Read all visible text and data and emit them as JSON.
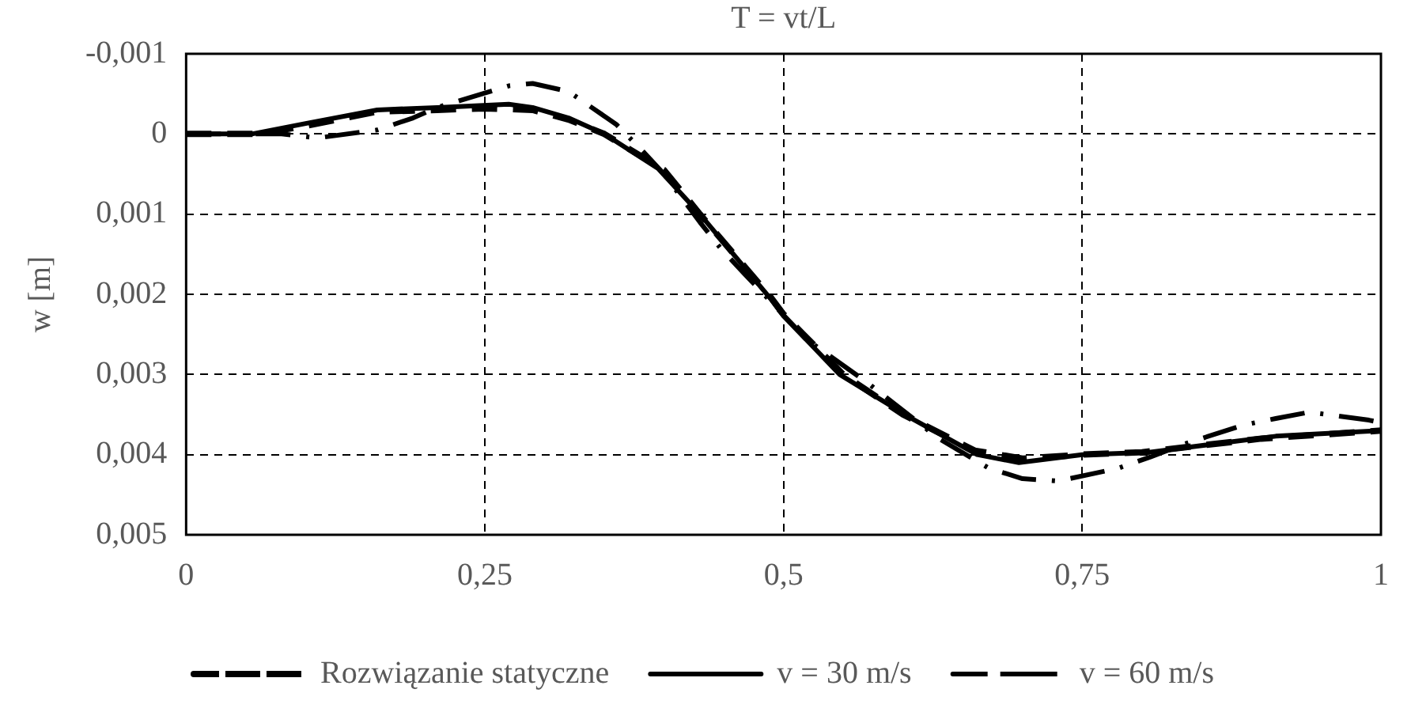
{
  "chart_data": {
    "type": "line",
    "xlabel": "T = vt/L",
    "ylabel": "w [m]",
    "xlim": [
      0,
      1
    ],
    "xticks": [
      0,
      {
        "value": 0.25,
        "label": "0,25"
      },
      {
        "value": 0.5,
        "label": "0,5"
      },
      {
        "value": 0.75,
        "label": "0,75"
      },
      1
    ],
    "ylim": [
      0.005,
      -0.001
    ],
    "yticks": [
      {
        "value": -0.001,
        "label": "-0,001"
      },
      0,
      {
        "value": 0.001,
        "label": "0,001"
      },
      {
        "value": 0.002,
        "label": "0,002"
      },
      {
        "value": 0.003,
        "label": "0,003"
      },
      {
        "value": 0.004,
        "label": "0,004"
      },
      {
        "value": 0.005,
        "label": "0,005"
      }
    ],
    "grid": true,
    "legend": "bottom",
    "marker": "none",
    "series": [
      {
        "name": "Rozwiązanie statyczne",
        "color": "#000000",
        "line_style": "dashed",
        "x": [
          0,
          0.06,
          0.1,
          0.16,
          0.21,
          0.25,
          0.29,
          0.32,
          0.35,
          0.4,
          0.43,
          0.49,
          0.5,
          0.55,
          0.6,
          0.66,
          0.7,
          0.75,
          0.8,
          0.9,
          1
        ],
        "values": [
          0,
          0,
          -0.0001,
          -0.00028,
          -0.0003,
          -0.00032,
          -0.0003,
          -0.00018,
          0,
          0.00045,
          0.001,
          0.00205,
          0.00225,
          0.003,
          0.0035,
          0.00395,
          0.00405,
          0.004,
          0.00397,
          0.0038,
          0.0037
        ]
      },
      {
        "name": "v = 30 m/s",
        "color": "#000000",
        "line_style": "solid",
        "x": [
          0,
          0.055,
          0.1,
          0.16,
          0.21,
          0.27,
          0.29,
          0.32,
          0.35,
          0.395,
          0.43,
          0.49,
          0.5,
          0.547,
          0.605,
          0.662,
          0.697,
          0.75,
          0.806,
          0.912,
          1
        ],
        "values": [
          0,
          0,
          -0.00013,
          -0.0003,
          -0.00033,
          -0.00037,
          -0.00033,
          -0.0002,
          0,
          0.00043,
          0.001,
          0.00207,
          0.00227,
          0.003,
          0.00353,
          0.004,
          0.0041,
          0.004,
          0.00397,
          0.00377,
          0.0037
        ]
      },
      {
        "name": "v = 60 m/s",
        "color": "#000000",
        "line_style": "dashdot",
        "x": [
          0,
          0.08,
          0.11,
          0.16,
          0.19,
          0.21,
          0.27,
          0.29,
          0.32,
          0.36,
          0.38,
          0.4,
          0.43,
          0.447,
          0.467,
          0.5,
          0.52,
          0.57,
          0.63,
          0.672,
          0.7,
          0.73,
          0.78,
          0.807,
          0.835,
          0.885,
          0.912,
          0.94,
          0.99,
          1
        ],
        "values": [
          0,
          0,
          5e-05,
          -5e-05,
          -0.0002,
          -0.00033,
          -0.0006,
          -0.00063,
          -0.00053,
          -0.00012,
          0.00018,
          0.0005,
          0.0011,
          0.00142,
          0.00174,
          0.00226,
          0.00257,
          0.0031,
          0.0038,
          0.00417,
          0.0043,
          0.00433,
          0.00417,
          0.00403,
          0.00387,
          0.00363,
          0.00355,
          0.00347,
          0.00357,
          0.0036
        ]
      }
    ]
  }
}
